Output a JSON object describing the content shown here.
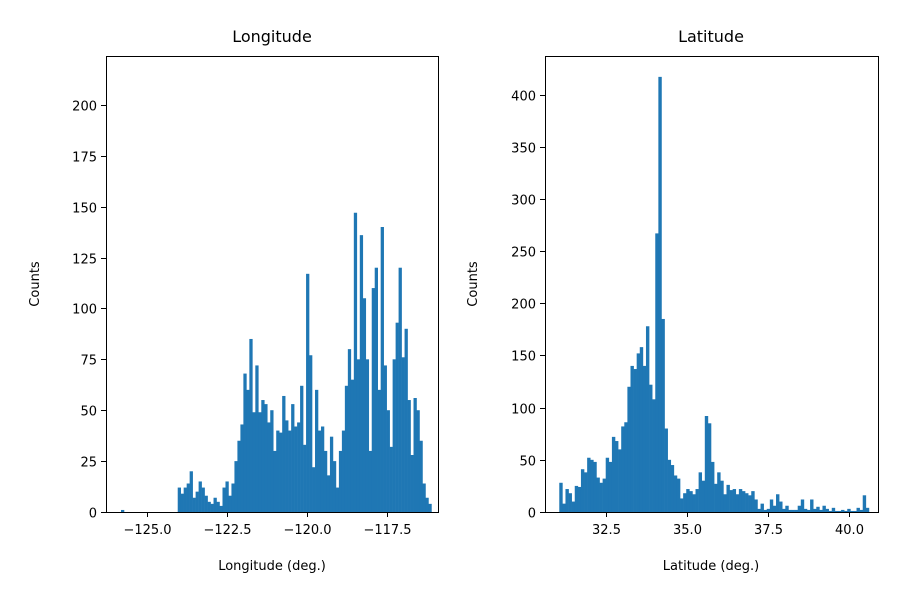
{
  "chart_data": [
    {
      "type": "bar",
      "title": "Longitude",
      "xlabel": "Longitude (deg.)",
      "ylabel": "Counts",
      "xlim": [
        -126.3,
        -115.9
      ],
      "ylim": [
        0,
        224
      ],
      "xticks": [
        -125.0,
        -122.5,
        -120.0,
        -117.5
      ],
      "xtick_labels": [
        "−125.0",
        "−122.5",
        "−120.0",
        "−117.5"
      ],
      "yticks": [
        0,
        25,
        50,
        75,
        100,
        125,
        150,
        175,
        200
      ],
      "ytick_labels": [
        "0",
        "25",
        "50",
        "75",
        "100",
        "125",
        "150",
        "175",
        "200"
      ],
      "grid": false,
      "bins": {
        "start": -125.83,
        "width": 0.0935
      },
      "color": "#1f77b4",
      "values": [
        1,
        0,
        0,
        0,
        0,
        0,
        0,
        0,
        0,
        0,
        0,
        0,
        0,
        0,
        0,
        0,
        0,
        0,
        0,
        12,
        9,
        12,
        14,
        20,
        7,
        10,
        15,
        12,
        8,
        5,
        4,
        7,
        5,
        3,
        12,
        15,
        8,
        14,
        25,
        35,
        43,
        68,
        60,
        85,
        49,
        72,
        49,
        55,
        53,
        44,
        50,
        30,
        40,
        39,
        57,
        45,
        40,
        53,
        42,
        44,
        62,
        33,
        117,
        77,
        22,
        60,
        40,
        42,
        30,
        18,
        37,
        25,
        12,
        30,
        40,
        62,
        80,
        65,
        147,
        75,
        136,
        105,
        75,
        30,
        110,
        120,
        60,
        140,
        72,
        50,
        32,
        75,
        93,
        120,
        76,
        90,
        55,
        28,
        56,
        50,
        35,
        14,
        7,
        4
      ]
    },
    {
      "type": "bar",
      "title": "Latitude",
      "xlabel": "Latitude (deg.)",
      "ylabel": "Counts",
      "xlim": [
        30.61,
        40.88
      ],
      "ylim": [
        0,
        437
      ],
      "xticks": [
        32.5,
        35.0,
        37.5,
        40.0
      ],
      "xtick_labels": [
        "32.5",
        "35.0",
        "37.5",
        "40.0"
      ],
      "yticks": [
        0,
        50,
        100,
        150,
        200,
        250,
        300,
        350,
        400
      ],
      "ytick_labels": [
        "0",
        "50",
        "100",
        "150",
        "200",
        "250",
        "300",
        "350",
        "400"
      ],
      "grid": false,
      "bins": {
        "start": 31.05,
        "width": 0.0955
      },
      "color": "#1f77b4",
      "values": [
        28,
        8,
        22,
        18,
        10,
        25,
        24,
        41,
        38,
        52,
        50,
        48,
        33,
        28,
        32,
        52,
        48,
        72,
        68,
        60,
        82,
        86,
        120,
        140,
        137,
        152,
        158,
        140,
        178,
        122,
        108,
        267,
        417,
        185,
        80,
        50,
        45,
        35,
        32,
        13,
        18,
        22,
        20,
        17,
        22,
        38,
        30,
        92,
        85,
        48,
        27,
        38,
        30,
        17,
        26,
        21,
        22,
        17,
        22,
        20,
        18,
        16,
        20,
        12,
        3,
        8,
        2,
        3,
        12,
        6,
        17,
        10,
        3,
        6,
        2,
        2,
        2,
        6,
        12,
        3,
        2,
        12,
        3,
        5,
        2,
        6,
        3,
        1,
        4,
        1,
        1,
        2,
        1,
        3,
        1,
        1,
        4,
        2,
        16,
        4
      ]
    }
  ]
}
